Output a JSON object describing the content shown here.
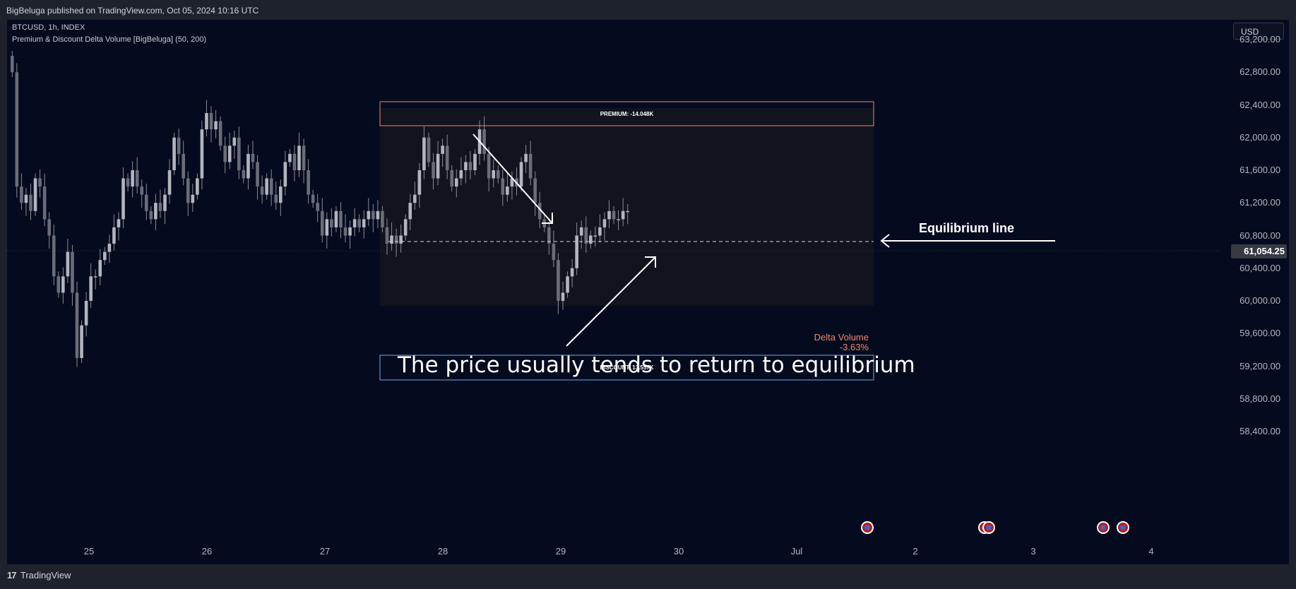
{
  "header": {
    "publish_line": "BigBeluga published on TradingView.com, Oct 05, 2024 10:16 UTC"
  },
  "legend": {
    "symbol_line": "BTCUSD, 1h, INDEX",
    "indicator_line": "Premium & Discount Delta Volume [BigBeluga] (50, 200)"
  },
  "currency_button": "USD",
  "price_axis": {
    "labels": [
      "63,200.00",
      "62,800.00",
      "62,400.00",
      "62,000.00",
      "61,600.00",
      "61,200.00",
      "60,800.00",
      "60,400.00",
      "60,000.00",
      "59,600.00",
      "59,200.00",
      "58,800.00",
      "58,400.00"
    ],
    "current_price": "61,054.25"
  },
  "time_axis": {
    "labels": [
      "25",
      "26",
      "27",
      "28",
      "29",
      "30",
      "Jul",
      "2",
      "3",
      "4"
    ]
  },
  "zones": {
    "premium_label": "PREMIUM: -14.048K",
    "discount_label": "DISCOUNT: 13.557K",
    "delta_title": "Delta Volume",
    "delta_value": "-3.63%"
  },
  "annotations": {
    "equilibrium": "Equilibrium line",
    "caption": "The price usually tends to return to equilibrium"
  },
  "colors": {
    "background": "#050b1f",
    "candle": "#8a8c94",
    "premium_border": "#f0876a",
    "discount_border": "#6fa8dc",
    "delta_text": "#f0876a"
  },
  "footer": {
    "brand": "TradingView",
    "logo_glyph": "17"
  },
  "chart_data": {
    "type": "candlestick",
    "symbol": "BTCUSD",
    "interval": "1h",
    "ylim": [
      58200,
      63400
    ],
    "x_ticks": [
      "25",
      "26",
      "27",
      "28",
      "29",
      "30",
      "Jul",
      "2",
      "3",
      "4"
    ],
    "equilibrium": 61150,
    "premium_zone": [
      62280,
      62540
    ],
    "discount_zone": [
      59600,
      59860
    ],
    "closes": [
      62800,
      61400,
      61200,
      61300,
      61100,
      61500,
      61400,
      61000,
      60800,
      60300,
      60100,
      60300,
      60600,
      60100,
      59300,
      59700,
      60000,
      60300,
      60300,
      60500,
      60600,
      60700,
      60900,
      61000,
      61500,
      61400,
      61600,
      61400,
      61300,
      61100,
      61000,
      61200,
      61100,
      61300,
      61600,
      62000,
      61800,
      61500,
      61200,
      61300,
      61500,
      62100,
      62300,
      62100,
      62200,
      61900,
      61700,
      61900,
      62000,
      61600,
      61500,
      61800,
      61700,
      61400,
      61300,
      61500,
      61300,
      61200,
      61400,
      61700,
      61800,
      61600,
      61900,
      61600,
      61300,
      61200,
      61100,
      60800,
      61000,
      60900,
      61100,
      60900,
      60800,
      60900,
      61000,
      60900,
      61000,
      61100,
      61000,
      61100,
      60900,
      60700,
      60800,
      60700,
      60800,
      61000,
      61200,
      61300,
      61600,
      62000,
      61700,
      61500,
      61800,
      61900,
      61600,
      61400,
      61500,
      61600,
      61700,
      61600,
      61800,
      62100,
      61800,
      61500,
      61600,
      61500,
      61300,
      61400,
      61500,
      61400,
      61700,
      61800,
      61500,
      61200,
      61000,
      60900,
      60700,
      60500,
      60000,
      60100,
      60300,
      60400,
      60800,
      60900,
      60700,
      60800,
      60800,
      60900,
      61000,
      61100,
      61000,
      61000,
      61100,
      61100
    ]
  }
}
